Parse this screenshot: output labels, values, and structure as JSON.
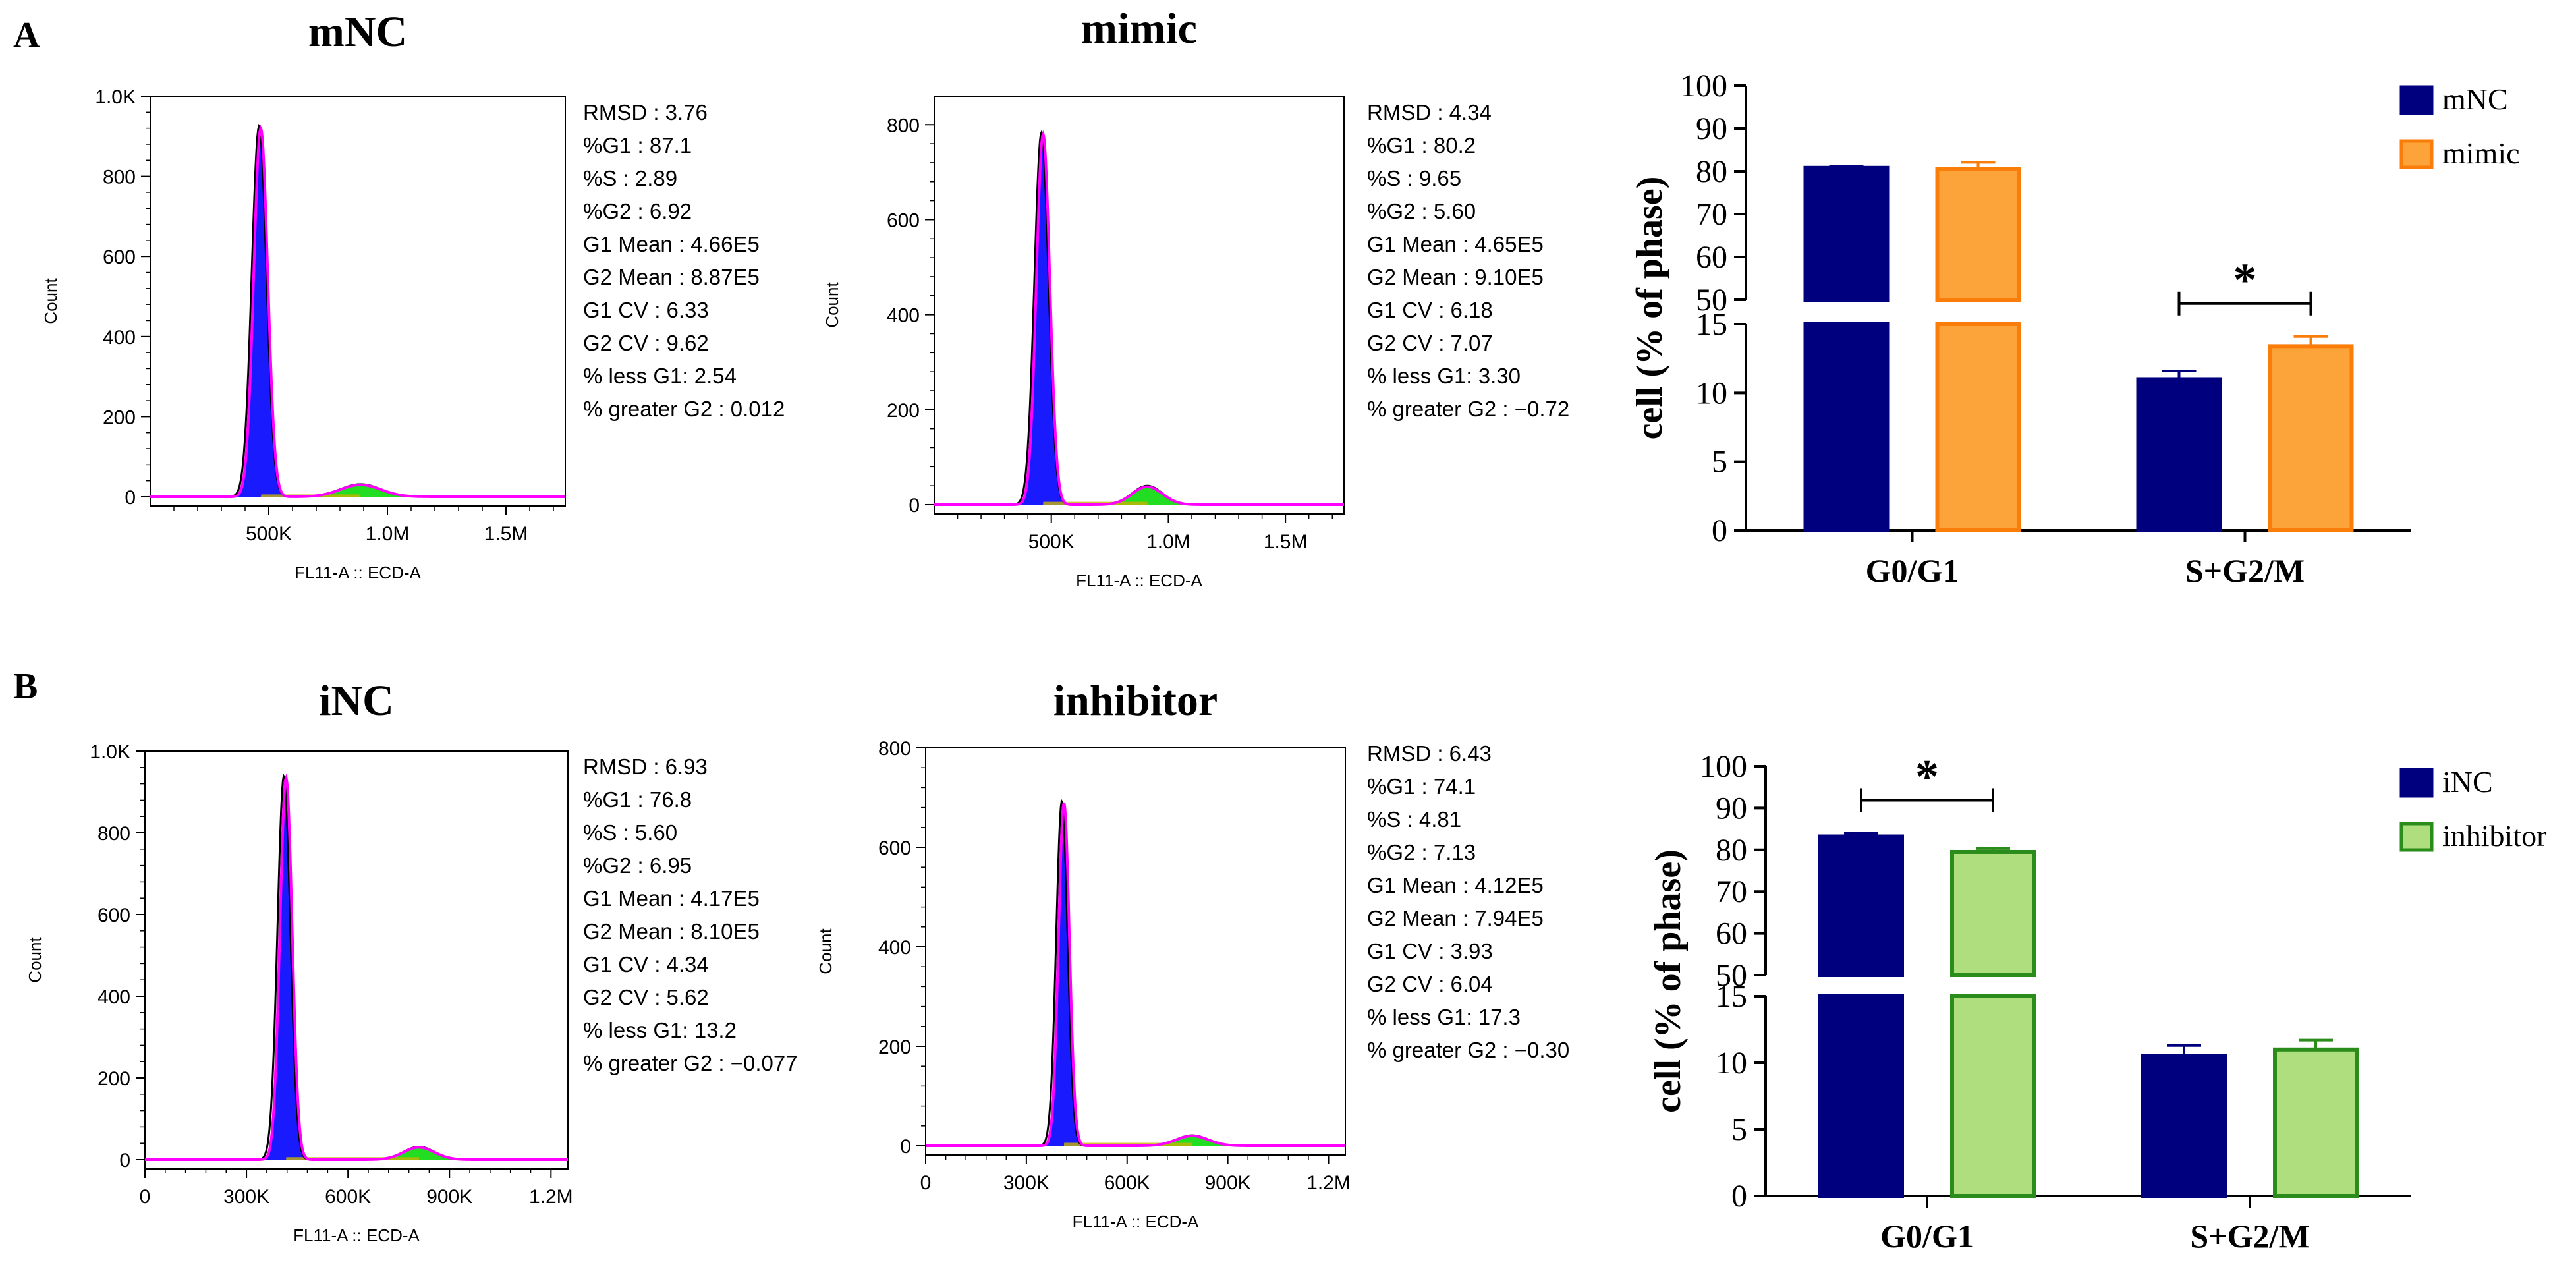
{
  "panels": [
    {
      "letter": "A",
      "histograms": [
        {
          "title": "mNC",
          "x_label": "FL11-A :: ECD-A",
          "y_label": "Count",
          "x_range": [
            0,
            1750000
          ],
          "x_ticks": [
            {
              "v": 500000,
              "label": "500K"
            },
            {
              "v": 1000000,
              "label": "1.0M"
            },
            {
              "v": 1500000,
              "label": "1.5M"
            }
          ],
          "y_range": [
            0,
            1000
          ],
          "y_ticks": [
            {
              "v": 0,
              "label": "0"
            },
            {
              "v": 200,
              "label": "200"
            },
            {
              "v": 400,
              "label": "400"
            },
            {
              "v": 600,
              "label": "600"
            },
            {
              "v": 800,
              "label": "800"
            },
            {
              "v": 1000,
              "label": "1.0K"
            }
          ],
          "g1_mean": 466000,
          "g1_cv": 6.33,
          "g1_peak": 920,
          "g2_mean": 887000,
          "g2_cv": 9.62,
          "g2_peak": 30,
          "stats": [
            "RMSD : 3.76",
            "%G1 : 87.1",
            "%S : 2.89",
            "%G2 : 6.92",
            "G1 Mean : 4.66E5",
            "G2 Mean : 8.87E5",
            "G1 CV : 6.33",
            "G2 CV : 9.62",
            "% less G1: 2.54",
            "% greater G2 : 0.012"
          ]
        },
        {
          "title": "mimic",
          "x_label": "FL11-A :: ECD-A",
          "y_label": "Count",
          "x_range": [
            0,
            1750000
          ],
          "x_ticks": [
            {
              "v": 500000,
              "label": "500K"
            },
            {
              "v": 1000000,
              "label": "1.0M"
            },
            {
              "v": 1500000,
              "label": "1.5M"
            }
          ],
          "y_range": [
            0,
            860
          ],
          "y_ticks": [
            {
              "v": 0,
              "label": "0"
            },
            {
              "v": 200,
              "label": "200"
            },
            {
              "v": 400,
              "label": "400"
            },
            {
              "v": 600,
              "label": "600"
            },
            {
              "v": 800,
              "label": "800"
            }
          ],
          "g1_mean": 465000,
          "g1_cv": 6.18,
          "g1_peak": 780,
          "g2_mean": 910000,
          "g2_cv": 7.07,
          "g2_peak": 38,
          "stats": [
            "RMSD : 4.34",
            "%G1 : 80.2",
            "%S : 9.65",
            "%G2 : 5.60",
            "G1 Mean : 4.65E5",
            "G2 Mean : 9.10E5",
            "G1 CV : 6.18",
            "G2 CV : 7.07",
            "% less G1: 3.30",
            "% greater G2 : −0.72"
          ]
        }
      ],
      "bar": {
        "ylabel": "cell (% of phase)",
        "categories": [
          "G0/G1",
          "S+G2/M"
        ],
        "series": [
          {
            "name": "mNC",
            "fill": "#00007f",
            "stroke": "#00007f",
            "values": [
              80.8,
              11.0
            ],
            "errors": [
              0.3,
              0.6
            ]
          },
          {
            "name": "mimic",
            "fill": "#fca43a",
            "stroke": "#fa7d09",
            "values": [
              80.5,
              13.4
            ],
            "errors": [
              1.6,
              0.7
            ]
          }
        ],
        "sig": {
          "category": "S+G2/M",
          "label": "*"
        },
        "upper_ticks": [
          "50",
          "60",
          "70",
          "80",
          "90",
          "100"
        ],
        "lower_ticks": [
          "0",
          "5",
          "10",
          "15"
        ]
      }
    },
    {
      "letter": "B",
      "histograms": [
        {
          "title": "iNC",
          "x_label": "FL11-A :: ECD-A",
          "y_label": "Count",
          "x_range": [
            0,
            1250000
          ],
          "x_ticks": [
            {
              "v": 0,
              "label": "0"
            },
            {
              "v": 300000,
              "label": "300K"
            },
            {
              "v": 600000,
              "label": "600K"
            },
            {
              "v": 900000,
              "label": "900K"
            },
            {
              "v": 1200000,
              "label": "1.2M"
            }
          ],
          "y_range": [
            0,
            1000
          ],
          "y_ticks": [
            {
              "v": 0,
              "label": "0"
            },
            {
              "v": 200,
              "label": "200"
            },
            {
              "v": 400,
              "label": "400"
            },
            {
              "v": 600,
              "label": "600"
            },
            {
              "v": 800,
              "label": "800"
            },
            {
              "v": 1000,
              "label": "1.0K"
            }
          ],
          "g1_mean": 417000,
          "g1_cv": 4.34,
          "g1_peak": 935,
          "g2_mean": 810000,
          "g2_cv": 5.62,
          "g2_peak": 30,
          "stats": [
            "RMSD : 6.93",
            "%G1 : 76.8",
            "%S : 5.60",
            "%G2 : 6.95",
            "G1 Mean : 4.17E5",
            "G2 Mean : 8.10E5",
            "G1 CV : 4.34",
            "G2 CV : 5.62",
            "% less G1: 13.2",
            "% greater G2 : −0.077"
          ]
        },
        {
          "title": "inhibitor",
          "x_label": "FL11-A :: ECD-A",
          "y_label": "Count",
          "x_range": [
            0,
            1250000
          ],
          "x_ticks": [
            {
              "v": 0,
              "label": "0"
            },
            {
              "v": 300000,
              "label": "300K"
            },
            {
              "v": 600000,
              "label": "600K"
            },
            {
              "v": 900000,
              "label": "900K"
            },
            {
              "v": 1200000,
              "label": "1.2M"
            }
          ],
          "y_range": [
            0,
            800
          ],
          "y_ticks": [
            {
              "v": 0,
              "label": "0"
            },
            {
              "v": 200,
              "label": "200"
            },
            {
              "v": 400,
              "label": "400"
            },
            {
              "v": 600,
              "label": "600"
            },
            {
              "v": 800,
              "label": "800"
            }
          ],
          "g1_mean": 412000,
          "g1_cv": 3.93,
          "g1_peak": 690,
          "g2_mean": 794000,
          "g2_cv": 6.04,
          "g2_peak": 20,
          "stats": [
            "RMSD : 6.43",
            "%G1 : 74.1",
            "%S : 4.81",
            "%G2 : 7.13",
            "G1 Mean : 4.12E5",
            "G2 Mean : 7.94E5",
            "G1 CV : 3.93",
            "G2 CV : 6.04",
            "% less G1: 17.3",
            "% greater G2 : −0.30"
          ]
        }
      ],
      "bar": {
        "ylabel": "cell (% of phase)",
        "categories": [
          "G0/G1",
          "S+G2/M"
        ],
        "series": [
          {
            "name": "iNC",
            "fill": "#00007f",
            "stroke": "#00007f",
            "values": [
              83.2,
              10.5
            ],
            "errors": [
              0.8,
              0.8
            ]
          },
          {
            "name": "inhibitor",
            "fill": "#aede7e",
            "stroke": "#2a8c1a",
            "values": [
              79.5,
              11.0
            ],
            "errors": [
              0.8,
              0.7
            ]
          }
        ],
        "sig": {
          "category": "G0/G1",
          "label": "*"
        },
        "upper_ticks": [
          "50",
          "60",
          "70",
          "80",
          "90",
          "100"
        ],
        "lower_ticks": [
          "0",
          "5",
          "10",
          "15"
        ]
      }
    }
  ],
  "chart_data": [
    {
      "type": "area",
      "title": "mNC",
      "xlabel": "FL11-A :: ECD-A",
      "ylabel": "Count",
      "xlim": [
        0,
        1750000
      ],
      "ylim": [
        0,
        1000
      ],
      "peaks": [
        {
          "x": 466000,
          "y": 920
        },
        {
          "x": 887000,
          "y": 30
        }
      ]
    },
    {
      "type": "area",
      "title": "mimic",
      "xlabel": "FL11-A :: ECD-A",
      "ylabel": "Count",
      "xlim": [
        0,
        1750000
      ],
      "ylim": [
        0,
        860
      ],
      "peaks": [
        {
          "x": 465000,
          "y": 780
        },
        {
          "x": 910000,
          "y": 38
        }
      ]
    },
    {
      "type": "bar",
      "title": "",
      "categories": [
        "G0/G1",
        "S+G2/M"
      ],
      "series": [
        {
          "name": "mNC",
          "values": [
            80.8,
            11.0
          ]
        },
        {
          "name": "mimic",
          "values": [
            80.5,
            13.4
          ]
        }
      ],
      "xlabel": "",
      "ylabel": "cell (% of phase)",
      "ylim": [
        0,
        100
      ],
      "axis_break": [
        15,
        50
      ]
    },
    {
      "type": "area",
      "title": "iNC",
      "xlabel": "FL11-A :: ECD-A",
      "ylabel": "Count",
      "xlim": [
        0,
        1250000
      ],
      "ylim": [
        0,
        1000
      ],
      "peaks": [
        {
          "x": 417000,
          "y": 935
        },
        {
          "x": 810000,
          "y": 30
        }
      ]
    },
    {
      "type": "area",
      "title": "inhibitor",
      "xlabel": "FL11-A :: ECD-A",
      "ylabel": "Count",
      "xlim": [
        0,
        1250000
      ],
      "ylim": [
        0,
        800
      ],
      "peaks": [
        {
          "x": 412000,
          "y": 690
        },
        {
          "x": 794000,
          "y": 20
        }
      ]
    },
    {
      "type": "bar",
      "title": "",
      "categories": [
        "G0/G1",
        "S+G2/M"
      ],
      "series": [
        {
          "name": "iNC",
          "values": [
            83.2,
            10.5
          ]
        },
        {
          "name": "inhibitor",
          "values": [
            79.5,
            11.0
          ]
        }
      ],
      "xlabel": "",
      "ylabel": "cell (% of phase)",
      "ylim": [
        0,
        100
      ],
      "axis_break": [
        15,
        50
      ]
    }
  ]
}
